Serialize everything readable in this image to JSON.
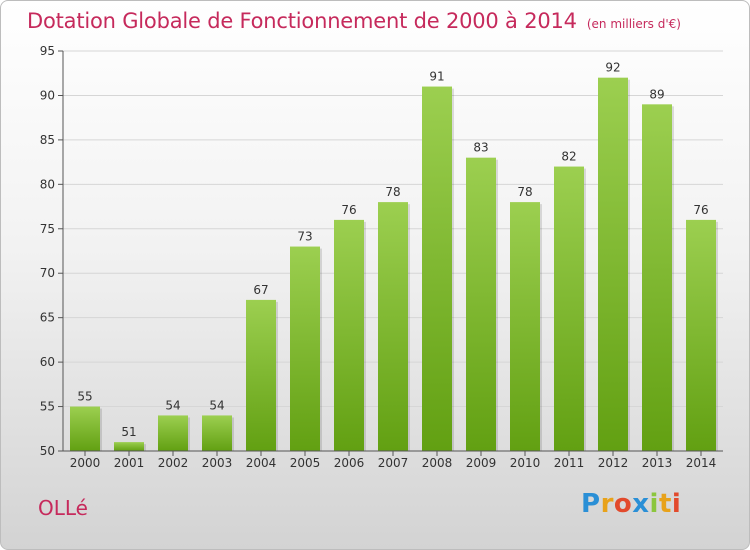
{
  "header": {
    "title": "Dotation Globale de Fonctionnement de 2000 à 2014",
    "unit": "(en milliers d'€)"
  },
  "footer": {
    "place": "OLLé",
    "logo": "Proxiti"
  },
  "colors": {
    "title": "#c62a5c",
    "bar_top": "#9ccf50",
    "bar_bottom": "#62a012",
    "grid": "#d6d6d6"
  },
  "chart_data": {
    "type": "bar",
    "title": "Dotation Globale de Fonctionnement de 2000 à 2014",
    "subtitle": "(en milliers d'€)",
    "xlabel": "",
    "ylabel": "",
    "categories": [
      "2000",
      "2001",
      "2002",
      "2003",
      "2004",
      "2005",
      "2006",
      "2007",
      "2008",
      "2009",
      "2010",
      "2011",
      "2012",
      "2013",
      "2014"
    ],
    "values": [
      55,
      51,
      54,
      54,
      67,
      73,
      76,
      78,
      91,
      83,
      78,
      82,
      92,
      89,
      76
    ],
    "ylim": [
      50,
      95
    ],
    "yticks": [
      50,
      55,
      60,
      65,
      70,
      75,
      80,
      85,
      90,
      95
    ],
    "grid": true,
    "legend": "none",
    "data_labels": true
  }
}
